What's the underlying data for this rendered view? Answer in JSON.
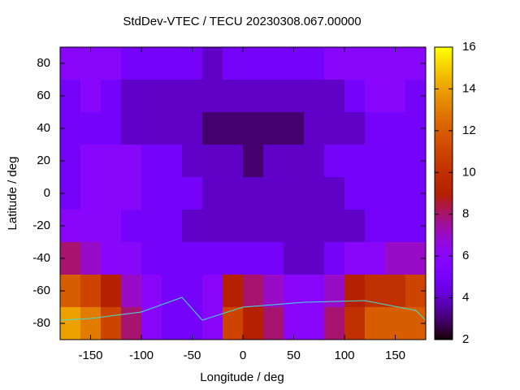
{
  "chart_data": {
    "type": "heatmap",
    "title": "StdDev-VTEC / TECU 20230308.067.00000",
    "xlabel": "Longitude / deg",
    "ylabel": "Latitude / deg",
    "xlim": [
      -180,
      180
    ],
    "xticks": [
      -150,
      -100,
      -50,
      0,
      50,
      100,
      150
    ],
    "ylim": [
      -90,
      90
    ],
    "yticks": [
      -80,
      -60,
      -40,
      -20,
      0,
      20,
      40,
      60,
      80
    ],
    "zlim": [
      2,
      16
    ],
    "zticks": [
      2,
      4,
      6,
      8,
      10,
      12,
      14,
      16
    ],
    "xbins": [
      -180,
      -160,
      -140,
      -120,
      -100,
      -80,
      -60,
      -40,
      -20,
      0,
      20,
      40,
      60,
      80,
      100,
      120,
      140,
      160,
      180
    ],
    "ybins": [
      90,
      70,
      50,
      30,
      10,
      -10,
      -30,
      -50,
      -70,
      -90
    ],
    "z": [
      [
        6,
        6,
        6,
        5,
        5,
        5,
        5,
        4,
        5,
        5,
        5,
        5,
        5,
        6,
        6,
        6,
        6,
        6
      ],
      [
        5,
        6,
        5,
        4,
        4,
        4,
        4,
        4,
        4,
        4,
        4,
        4,
        4,
        4,
        5,
        6,
        6,
        5
      ],
      [
        5,
        5,
        5,
        4,
        4,
        4,
        4,
        3,
        3,
        3,
        3,
        3,
        4,
        4,
        4,
        5,
        5,
        5
      ],
      [
        5,
        6,
        6,
        6,
        5,
        5,
        4,
        4,
        4,
        3,
        4,
        4,
        4,
        5,
        5,
        5,
        5,
        5
      ],
      [
        5,
        6,
        6,
        6,
        5,
        5,
        5,
        4,
        4,
        4,
        4,
        4,
        4,
        4,
        5,
        5,
        5,
        5
      ],
      [
        6,
        6,
        6,
        5,
        5,
        5,
        4,
        4,
        4,
        4,
        4,
        4,
        4,
        4,
        4,
        5,
        5,
        5
      ],
      [
        8,
        7,
        6,
        6,
        5,
        5,
        5,
        5,
        5,
        5,
        5,
        4,
        4,
        5,
        6,
        6,
        7,
        7
      ],
      [
        12,
        11,
        9,
        7,
        6,
        5,
        5,
        6,
        9,
        8,
        7,
        6,
        6,
        7,
        9,
        10,
        10,
        11
      ],
      [
        14,
        13,
        11,
        8,
        6,
        5,
        5,
        6,
        11,
        9,
        8,
        6,
        6,
        8,
        10,
        12,
        12,
        12
      ]
    ]
  }
}
